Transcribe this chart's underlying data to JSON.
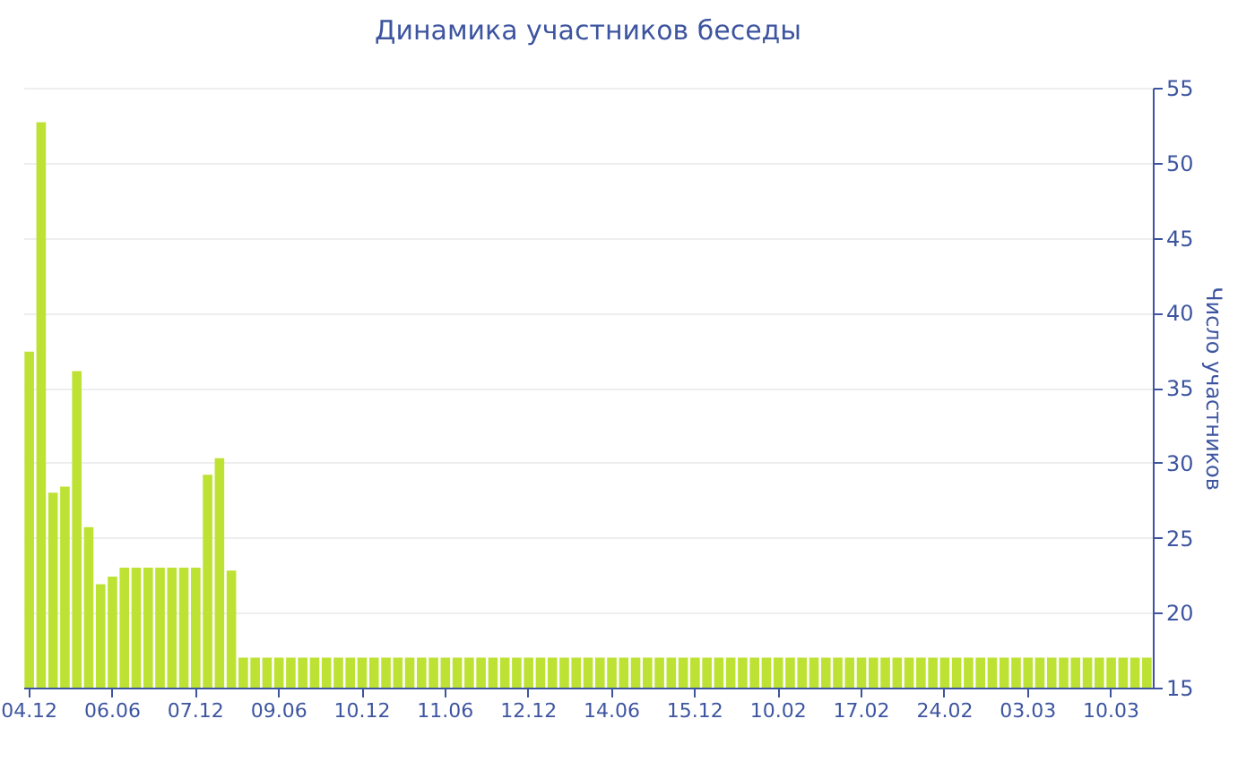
{
  "chart_data": {
    "type": "bar",
    "title": "Динамика участников беседы",
    "ylabel": "Число участников",
    "categories": [
      "04.12",
      null,
      null,
      null,
      null,
      null,
      null,
      "06.06",
      null,
      null,
      null,
      null,
      null,
      null,
      "07.12",
      null,
      null,
      null,
      null,
      null,
      null,
      "09.06",
      null,
      null,
      null,
      null,
      null,
      null,
      "10.12",
      null,
      null,
      null,
      null,
      null,
      null,
      "11.06",
      null,
      null,
      null,
      null,
      null,
      null,
      "12.12",
      null,
      null,
      null,
      null,
      null,
      null,
      "14.06",
      null,
      null,
      null,
      null,
      null,
      null,
      "15.12",
      null,
      null,
      null,
      null,
      null,
      null,
      "10.02",
      null,
      null,
      null,
      null,
      null,
      null,
      "17.02",
      null,
      null,
      null,
      null,
      null,
      null,
      "24.02",
      null,
      null,
      null,
      null,
      null,
      null,
      "03.03",
      null,
      null,
      null,
      null,
      null,
      null,
      "10.03",
      null,
      null,
      null
    ],
    "values": [
      37.4,
      52.7,
      28,
      28.4,
      36.1,
      25.7,
      21.9,
      22.4,
      23,
      23,
      23,
      23,
      23,
      23,
      23,
      29.2,
      30.3,
      22.8,
      17,
      17,
      17,
      17,
      17,
      17,
      17,
      17,
      17,
      17,
      17,
      17,
      17,
      17,
      17,
      17,
      17,
      17,
      17,
      17,
      17,
      17,
      17,
      17,
      17,
      17,
      17,
      17,
      17,
      17,
      17,
      17,
      17,
      17,
      17,
      17,
      17,
      17,
      17,
      17,
      17,
      17,
      17,
      17,
      17,
      17,
      17,
      17,
      17,
      17,
      17,
      17,
      17,
      17,
      17,
      17,
      17,
      17,
      17,
      17,
      17,
      17,
      17,
      17,
      17,
      17,
      17,
      17,
      17,
      17,
      17,
      17,
      17,
      17,
      17,
      17,
      17
    ],
    "color": "#bde234",
    "ylim": [
      15,
      55
    ],
    "yticks": [
      15,
      20,
      25,
      30,
      35,
      40,
      45,
      50,
      55
    ],
    "grid": "y"
  }
}
